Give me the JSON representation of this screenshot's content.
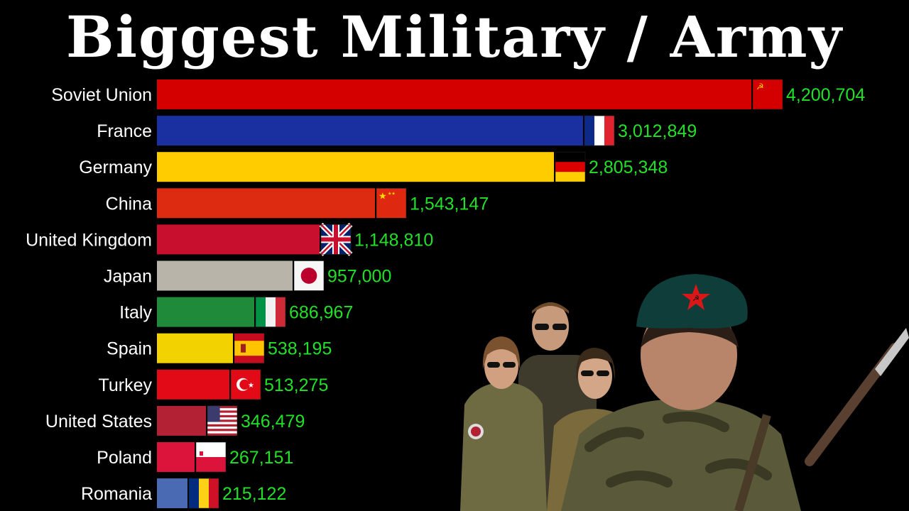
{
  "title": "Biggest Military / Army",
  "chart_data": {
    "type": "bar",
    "orientation": "horizontal",
    "title": "Biggest Military / Army",
    "xlabel": "",
    "ylabel": "",
    "grid": false,
    "legend": "none",
    "xlim": [
      0,
      4200704
    ],
    "categories": [
      "Soviet Union",
      "France",
      "Germany",
      "China",
      "United Kingdom",
      "Japan",
      "Italy",
      "Spain",
      "Turkey",
      "United States",
      "Poland",
      "Romania"
    ],
    "values": [
      4200704,
      3012849,
      2805348,
      1543147,
      1148810,
      957000,
      686967,
      538195,
      513275,
      346479,
      267151,
      215122
    ],
    "value_labels": [
      "4,200,704",
      "3,012,849",
      "2,805,348",
      "1,543,147",
      "1,148,810",
      "957,000",
      "686,967",
      "538,195",
      "513,275",
      "346,479",
      "267,151",
      "215,122"
    ],
    "bar_colors": [
      "#d40000",
      "#1a2fa0",
      "#ffcc00",
      "#dd2b12",
      "#c8102e",
      "#b8b4aa",
      "#1f8a3a",
      "#f2d200",
      "#e30a17",
      "#b22234",
      "#dc143c",
      "#4a6ab4"
    ],
    "flags": [
      "soviet-union-flag-icon",
      "france-flag-icon",
      "germany-flag-icon",
      "china-flag-icon",
      "united-kingdom-flag-icon",
      "japan-flag-icon",
      "italy-flag-icon",
      "spain-flag-icon",
      "turkey-flag-icon",
      "united-states-flag-icon",
      "poland-flag-icon",
      "romania-flag-icon"
    ],
    "value_label_color": "#22e02a",
    "background": "#000000"
  },
  "decoration": {
    "photo": "soldiers-photo",
    "beret_star": "star-hammer-sickle-icon"
  }
}
